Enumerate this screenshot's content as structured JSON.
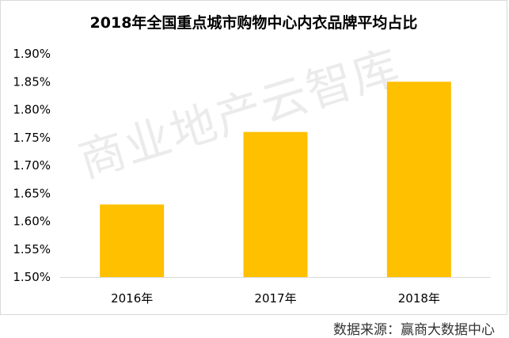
{
  "chart_data": {
    "type": "bar",
    "title": "2018年全国重点城市购物中心内衣品牌平均占比",
    "categories": [
      "2016年",
      "2017年",
      "2018年"
    ],
    "values": [
      1.63,
      1.76,
      1.85
    ],
    "ylim": [
      1.5,
      1.9
    ],
    "yticks": [
      "1.50%",
      "1.55%",
      "1.60%",
      "1.65%",
      "1.70%",
      "1.75%",
      "1.80%",
      "1.85%",
      "1.90%"
    ],
    "ytick_values": [
      1.5,
      1.55,
      1.6,
      1.65,
      1.7,
      1.75,
      1.8,
      1.85,
      1.9
    ],
    "xlabel": "",
    "ylabel": "",
    "grid": false,
    "bar_color": "#FFC000"
  },
  "watermark": "商业地产云智库",
  "source": "数据来源：赢商大数据中心"
}
